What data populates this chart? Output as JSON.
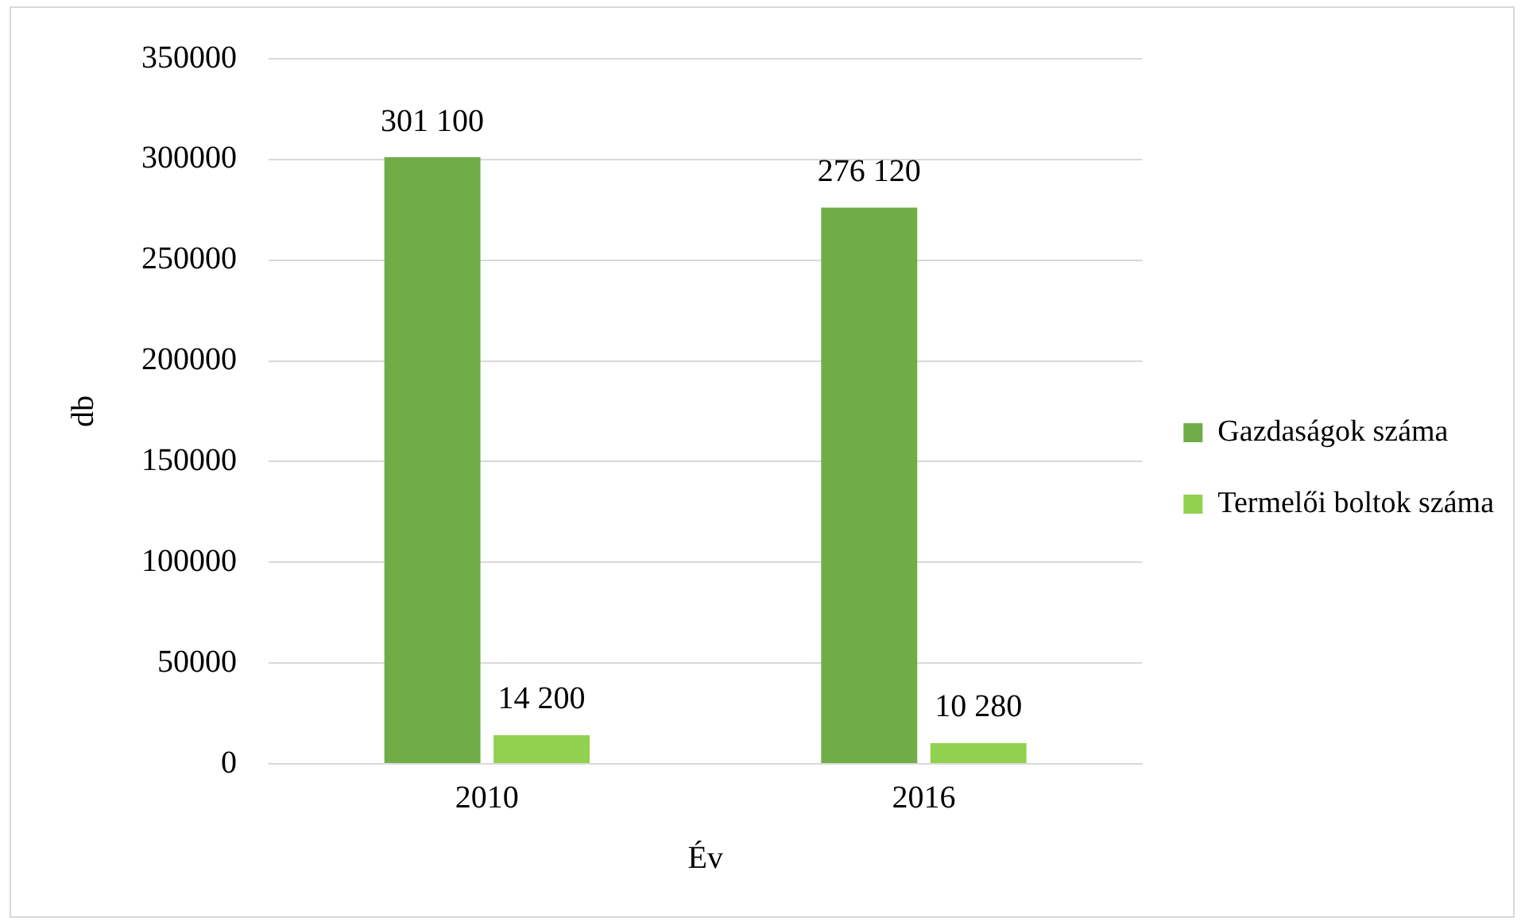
{
  "chart_data": {
    "type": "bar",
    "xlabel": "Év",
    "ylabel": "db",
    "categories": [
      "2010",
      "2016"
    ],
    "series": [
      {
        "name": "Gazdaságok száma",
        "color": "#70ad47",
        "values": [
          301100,
          276120
        ],
        "value_labels": [
          "301 100",
          "276 120"
        ]
      },
      {
        "name": "Termelői boltok száma",
        "color": "#92d050",
        "values": [
          14200,
          10280
        ],
        "value_labels": [
          "14 200",
          "10 280"
        ]
      }
    ],
    "ylim": [
      0,
      350000
    ],
    "yticks": [
      0,
      50000,
      100000,
      150000,
      200000,
      250000,
      300000,
      350000
    ],
    "grid": "y",
    "legend": "right"
  }
}
